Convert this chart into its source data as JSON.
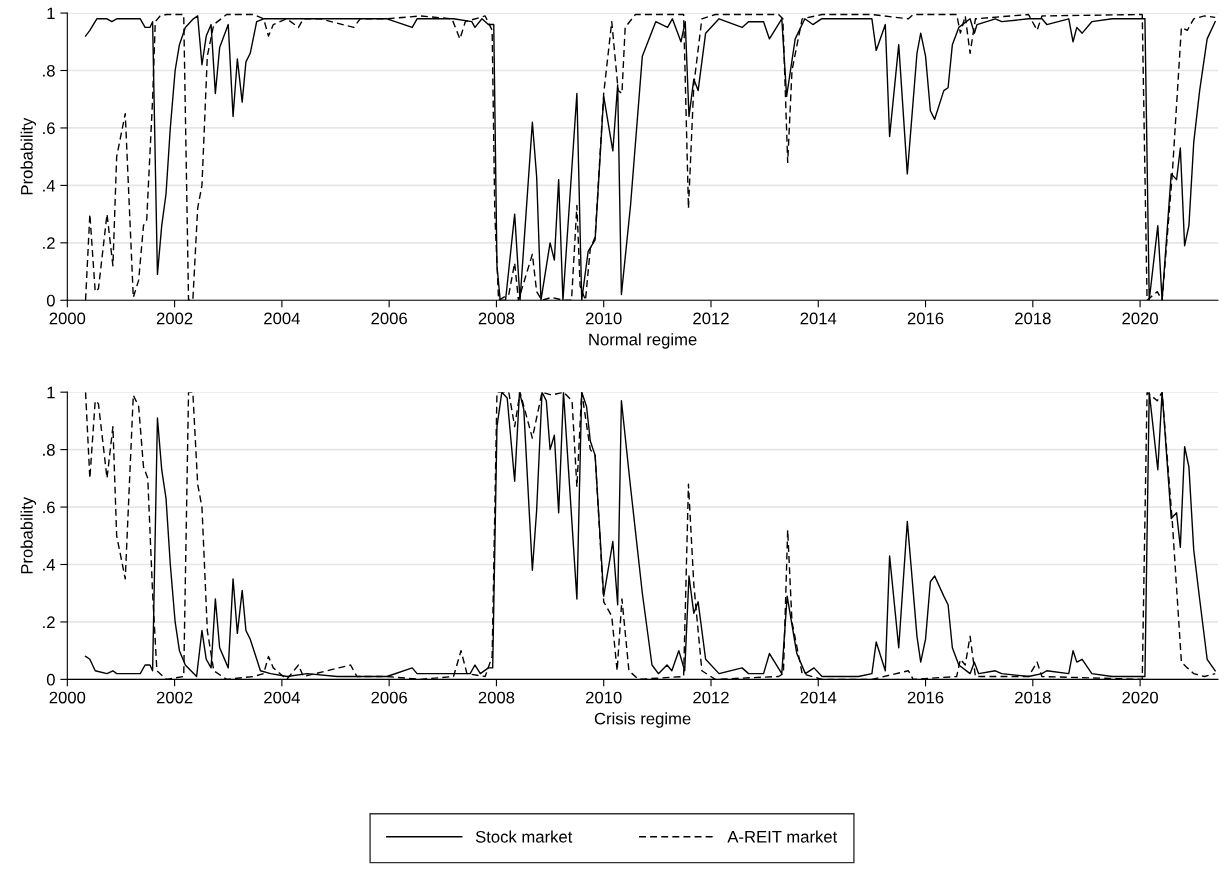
{
  "chart_data": [
    {
      "type": "line",
      "xlabel": "Normal regime",
      "ylabel": "Probability",
      "xlim": [
        2000,
        2021.45
      ],
      "xticks": [
        2000,
        2002,
        2004,
        2006,
        2008,
        2010,
        2012,
        2014,
        2016,
        2018,
        2020
      ],
      "ylim": [
        0,
        1
      ],
      "yticks": [
        {
          "value": 0,
          "label": "0"
        },
        {
          "value": 0.2,
          "label": ".2"
        },
        {
          "value": 0.4,
          "label": ".4"
        },
        {
          "value": 0.6,
          "label": ".6"
        },
        {
          "value": 0.8,
          "label": ".8"
        },
        {
          "value": 1,
          "label": "1"
        }
      ],
      "grid": "y",
      "legend": "bottom",
      "series": [
        {
          "name": "Stock market",
          "color": "#000000",
          "line_style": "solid",
          "x": [
            2000.34,
            2000.42,
            2000.55,
            2000.74,
            2000.83,
            2000.92,
            2001.01,
            2001.36,
            2001.45,
            2001.54,
            2001.59,
            2001.68,
            2001.76,
            2001.84,
            2001.92,
            2002.01,
            2002.09,
            2002.2,
            2002.35,
            2002.43,
            2002.51,
            2002.59,
            2002.68,
            2002.76,
            2002.84,
            2003.0,
            2003.09,
            2003.17,
            2003.26,
            2003.33,
            2003.41,
            2003.53,
            2003.66,
            2004.1,
            2004.72,
            2005.34,
            2005.96,
            2006.43,
            2006.52,
            2007.2,
            2007.54,
            2007.6,
            2007.73,
            2007.85,
            2007.95,
            2008.01,
            2008.07,
            2008.17,
            2008.34,
            2008.44,
            2008.67,
            2008.75,
            2008.83,
            2009.0,
            2009.08,
            2009.16,
            2009.24,
            2009.5,
            2009.59,
            2009.71,
            2009.84,
            2010.0,
            2010.17,
            2010.26,
            2010.33,
            2010.5,
            2010.72,
            2010.97,
            2011.19,
            2011.28,
            2011.44,
            2011.52,
            2011.59,
            2011.68,
            2011.76,
            2011.9,
            2012.15,
            2012.58,
            2012.7,
            2012.98,
            2013.09,
            2013.32,
            2013.41,
            2013.57,
            2013.75,
            2013.9,
            2014.06,
            2015.0,
            2015.08,
            2015.25,
            2015.33,
            2015.5,
            2015.66,
            2015.84,
            2015.91,
            2016.0,
            2016.09,
            2016.17,
            2016.34,
            2016.42,
            2016.5,
            2016.62,
            2016.83,
            2016.91,
            2016.96,
            2017.3,
            2017.42,
            2017.92,
            2018.17,
            2018.26,
            2018.67,
            2018.75,
            2018.82,
            2018.92,
            2019.1,
            2019.48,
            2020.04,
            2020.09,
            2020.17,
            2020.33,
            2020.41,
            2020.58,
            2020.68,
            2020.75,
            2020.83,
            2020.91,
            2021.0,
            2021.11,
            2021.25,
            2021.4
          ],
          "values": [
            0.92,
            0.94,
            0.98,
            0.98,
            0.97,
            0.98,
            0.98,
            0.98,
            0.95,
            0.95,
            0.97,
            0.09,
            0.26,
            0.37,
            0.6,
            0.8,
            0.89,
            0.95,
            0.98,
            0.99,
            0.82,
            0.92,
            0.96,
            0.72,
            0.88,
            0.96,
            0.64,
            0.84,
            0.69,
            0.83,
            0.86,
            0.97,
            0.98,
            0.98,
            0.98,
            0.98,
            0.98,
            0.95,
            0.98,
            0.98,
            0.97,
            0.95,
            0.98,
            0.96,
            0.96,
            0.12,
            0,
            0,
            0.3,
            0,
            0.62,
            0.43,
            0,
            0.2,
            0.14,
            0.42,
            0,
            0.72,
            0,
            0.17,
            0.21,
            0.71,
            0.52,
            0.75,
            0.02,
            0.33,
            0.85,
            0.97,
            0.95,
            0.98,
            0.9,
            0.97,
            0.64,
            0.77,
            0.73,
            0.93,
            0.98,
            0.95,
            0.97,
            0.97,
            0.91,
            0.98,
            0.71,
            0.91,
            0.98,
            0.96,
            0.98,
            0.98,
            0.87,
            0.96,
            0.57,
            0.89,
            0.44,
            0.86,
            0.93,
            0.85,
            0.66,
            0.63,
            0.73,
            0.74,
            0.89,
            0.95,
            0.98,
            0.93,
            0.96,
            0.98,
            0.97,
            0.98,
            0.98,
            0.96,
            0.98,
            0.9,
            0.95,
            0.93,
            0.97,
            0.98,
            0.98,
            0.98,
            0,
            0.26,
            0,
            0.44,
            0.42,
            0.53,
            0.19,
            0.26,
            0.55,
            0.73,
            0.91,
            0.97
          ]
        },
        {
          "name": "A-REIT market",
          "color": "#000000",
          "line_style": "dashed",
          "x": [
            2000.34,
            2000.42,
            2000.52,
            2000.58,
            2000.74,
            2000.85,
            2000.92,
            2001.08,
            2001.23,
            2001.33,
            2001.42,
            2001.48,
            2001.59,
            2001.64,
            2001.73,
            2001.85,
            2002.17,
            2002.26,
            2002.34,
            2002.43,
            2002.51,
            2002.61,
            2002.73,
            2002.97,
            2003.47,
            2003.66,
            2003.75,
            2003.84,
            2004.09,
            2004.31,
            2004.4,
            2004.72,
            2005.34,
            2005.46,
            2005.96,
            2006.58,
            2007.17,
            2007.32,
            2007.42,
            2007.79,
            2007.92,
            2007.97,
            2008.04,
            2008.23,
            2008.34,
            2008.41,
            2008.67,
            2008.75,
            2008.85,
            2009.03,
            2009.25,
            2009.4,
            2009.5,
            2009.56,
            2009.66,
            2009.75,
            2009.84,
            2010.0,
            2010.15,
            2010.27,
            2010.34,
            2010.4,
            2010.59,
            2011.49,
            2011.58,
            2011.68,
            2011.83,
            2012.08,
            2013.26,
            2013.34,
            2013.43,
            2013.51,
            2013.7,
            2014.07,
            2015.0,
            2015.68,
            2015.77,
            2016.58,
            2016.65,
            2016.74,
            2016.83,
            2016.93,
            2017.92,
            2018.08,
            2018.17,
            2020.04,
            2020.13,
            2020.32,
            2020.41,
            2020.6,
            2020.77,
            2020.88,
            2021.0,
            2021.2,
            2021.4
          ],
          "values": [
            0,
            0.3,
            0.03,
            0.04,
            0.3,
            0.12,
            0.5,
            0.65,
            0.01,
            0.07,
            0.26,
            0.28,
            0.7,
            0.97,
            0.99,
            0.995,
            0.995,
            0,
            0,
            0.32,
            0.4,
            0.85,
            0.96,
            0.995,
            0.995,
            0.98,
            0.92,
            0.96,
            0.98,
            0.95,
            0.98,
            0.98,
            0.95,
            0.98,
            0.98,
            0.99,
            0.98,
            0.91,
            0.97,
            0.99,
            0.94,
            0.3,
            0,
            0.02,
            0.13,
            0,
            0.16,
            0.03,
            0,
            0.01,
            0,
            0,
            0.33,
            0.05,
            0,
            0.18,
            0.22,
            0.72,
            0.97,
            0.73,
            0.72,
            0.95,
            0.995,
            0.995,
            0.32,
            0.75,
            0.98,
            0.995,
            0.995,
            0.98,
            0.48,
            0.8,
            0.98,
            0.995,
            0.995,
            0.98,
            0.995,
            0.995,
            0.93,
            0.99,
            0.86,
            0.98,
            0.995,
            0.94,
            0.99,
            0.995,
            0,
            0.03,
            0,
            0.44,
            0.95,
            0.94,
            0.98,
            0.99,
            0.985
          ]
        }
      ]
    },
    {
      "type": "line",
      "xlabel": "Crisis regime",
      "ylabel": "Probability",
      "xlim": [
        2000,
        2021.45
      ],
      "xticks": [
        2000,
        2002,
        2004,
        2006,
        2008,
        2010,
        2012,
        2014,
        2016,
        2018,
        2020
      ],
      "ylim": [
        0,
        1
      ],
      "yticks": [
        {
          "value": 0,
          "label": "0"
        },
        {
          "value": 0.2,
          "label": ".2"
        },
        {
          "value": 0.4,
          "label": ".4"
        },
        {
          "value": 0.6,
          "label": ".6"
        },
        {
          "value": 0.8,
          "label": ".8"
        },
        {
          "value": 1,
          "label": "1"
        }
      ],
      "grid": "y",
      "series": [
        {
          "color": "#000000",
          "line_style": "solid",
          "x": [
            2000.34,
            2000.42,
            2000.52,
            2000.74,
            2000.85,
            2000.92,
            2001.17,
            2001.36,
            2001.45,
            2001.54,
            2001.59,
            2001.68,
            2001.76,
            2001.84,
            2001.92,
            2002.01,
            2002.09,
            2002.2,
            2002.41,
            2002.51,
            2002.59,
            2002.68,
            2002.76,
            2002.84,
            2003.0,
            2003.09,
            2003.17,
            2003.26,
            2003.33,
            2003.41,
            2003.6,
            2003.79,
            2004.1,
            2004.47,
            2005.03,
            2005.96,
            2006.43,
            2006.52,
            2007.2,
            2007.51,
            2007.6,
            2007.7,
            2007.85,
            2007.93,
            2008.01,
            2008.1,
            2008.2,
            2008.34,
            2008.43,
            2008.51,
            2008.67,
            2008.75,
            2008.85,
            2008.93,
            2009.0,
            2009.08,
            2009.16,
            2009.25,
            2009.5,
            2009.59,
            2009.68,
            2009.75,
            2009.84,
            2010.0,
            2010.17,
            2010.26,
            2010.33,
            2010.5,
            2010.72,
            2010.9,
            2011.02,
            2011.18,
            2011.27,
            2011.4,
            2011.51,
            2011.59,
            2011.68,
            2011.76,
            2011.9,
            2012.15,
            2012.58,
            2012.7,
            2012.98,
            2013.09,
            2013.32,
            2013.42,
            2013.6,
            2013.76,
            2013.92,
            2014.07,
            2014.75,
            2015.0,
            2015.08,
            2015.25,
            2015.33,
            2015.5,
            2015.66,
            2015.84,
            2015.91,
            2016.0,
            2016.09,
            2016.17,
            2016.34,
            2016.42,
            2016.5,
            2016.62,
            2016.83,
            2016.91,
            2016.99,
            2017.3,
            2017.42,
            2017.92,
            2018.17,
            2018.26,
            2018.67,
            2018.75,
            2018.82,
            2018.92,
            2019.1,
            2019.48,
            2020.04,
            2020.09,
            2020.17,
            2020.33,
            2020.41,
            2020.58,
            2020.68,
            2020.75,
            2020.83,
            2020.91,
            2021.0,
            2021.11,
            2021.25,
            2021.4
          ],
          "values": [
            0.08,
            0.07,
            0.03,
            0.02,
            0.03,
            0.02,
            0.02,
            0.02,
            0.05,
            0.05,
            0.03,
            0.91,
            0.73,
            0.63,
            0.4,
            0.2,
            0.1,
            0.05,
            0.01,
            0.17,
            0.07,
            0.04,
            0.28,
            0.11,
            0.04,
            0.35,
            0.16,
            0.31,
            0.17,
            0.14,
            0.03,
            0.02,
            0.01,
            0.02,
            0.01,
            0.01,
            0.04,
            0.02,
            0.02,
            0.02,
            0.05,
            0.02,
            0.04,
            0.04,
            0.88,
            1.0,
            0.98,
            0.69,
            1.0,
            0.94,
            0.38,
            0.59,
            1.0,
            0.97,
            0.8,
            0.85,
            0.58,
            1.0,
            0.28,
            1.0,
            0.95,
            0.83,
            0.78,
            0.29,
            0.48,
            0.26,
            0.97,
            0.67,
            0.3,
            0.05,
            0.02,
            0.05,
            0.03,
            0.1,
            0.03,
            0.36,
            0.23,
            0.27,
            0.07,
            0.02,
            0.04,
            0.02,
            0.02,
            0.09,
            0.02,
            0.29,
            0.09,
            0.02,
            0.04,
            0.01,
            0.01,
            0.02,
            0.13,
            0.03,
            0.43,
            0.11,
            0.55,
            0.15,
            0.06,
            0.14,
            0.34,
            0.36,
            0.29,
            0.26,
            0.11,
            0.05,
            0.02,
            0.06,
            0.02,
            0.03,
            0.02,
            0.01,
            0.02,
            0.03,
            0.02,
            0.1,
            0.06,
            0.07,
            0.02,
            0.01,
            0.01,
            0.01,
            1.0,
            0.73,
            1.0,
            0.56,
            0.58,
            0.46,
            0.81,
            0.74,
            0.45,
            0.28,
            0.07,
            0.03
          ]
        },
        {
          "color": "#000000",
          "line_style": "dashed",
          "x": [
            2000.34,
            2000.42,
            2000.52,
            2000.58,
            2000.74,
            2000.85,
            2000.92,
            2001.08,
            2001.23,
            2001.33,
            2001.42,
            2001.5,
            2001.59,
            2001.67,
            2001.85,
            2002.17,
            2002.26,
            2002.34,
            2002.43,
            2002.51,
            2002.61,
            2002.73,
            2002.97,
            2003.47,
            2003.66,
            2003.75,
            2003.84,
            2004.09,
            2004.31,
            2004.4,
            2005.28,
            2005.4,
            2005.96,
            2006.58,
            2007.2,
            2007.34,
            2007.45,
            2007.79,
            2007.92,
            2008.01,
            2008.23,
            2008.34,
            2008.44,
            2008.67,
            2008.85,
            2009.03,
            2009.25,
            2009.41,
            2009.5,
            2009.59,
            2009.75,
            2009.84,
            2010.0,
            2010.15,
            2010.25,
            2010.34,
            2010.47,
            2010.65,
            2011.49,
            2011.58,
            2011.68,
            2011.83,
            2012.08,
            2013.26,
            2013.35,
            2013.43,
            2013.51,
            2013.7,
            2014.07,
            2015.0,
            2015.68,
            2015.77,
            2016.58,
            2016.65,
            2016.74,
            2016.83,
            2016.93,
            2017.92,
            2018.08,
            2018.17,
            2020.04,
            2020.13,
            2020.32,
            2020.41,
            2020.6,
            2020.77,
            2020.88,
            2021.0,
            2021.2,
            2021.4
          ],
          "values": [
            1.0,
            0.7,
            0.97,
            0.96,
            0.7,
            0.88,
            0.5,
            0.35,
            0.99,
            0.95,
            0.74,
            0.7,
            0.3,
            0.03,
            0,
            0.01,
            1.0,
            1.0,
            0.68,
            0.6,
            0.17,
            0.03,
            0,
            0.01,
            0.02,
            0.08,
            0.04,
            0,
            0.05,
            0.01,
            0.05,
            0.01,
            0.01,
            0,
            0.01,
            0.1,
            0.02,
            0.01,
            0.08,
            1.0,
            1.0,
            0.88,
            1.0,
            0.84,
            1.0,
            0.99,
            1.0,
            0.97,
            0.67,
            1.0,
            0.8,
            0.78,
            0.27,
            0.22,
            0.03,
            0.28,
            0.03,
            0,
            0.01,
            0.68,
            0.33,
            0.03,
            0,
            0.01,
            0.02,
            0.52,
            0.2,
            0.02,
            0,
            0,
            0.03,
            0,
            0.01,
            0.07,
            0.05,
            0.15,
            0.01,
            0.01,
            0.06,
            0.01,
            0,
            1.0,
            0.97,
            1.0,
            0.55,
            0.06,
            0.04,
            0.02,
            0.01,
            0.02
          ]
        }
      ]
    }
  ]
}
